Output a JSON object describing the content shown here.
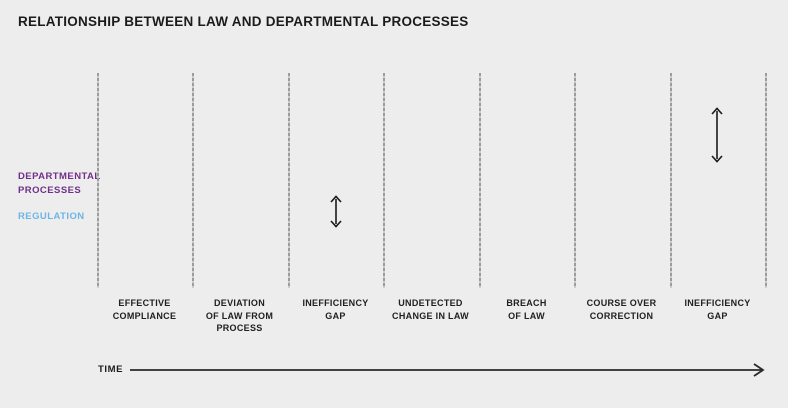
{
  "title": "RELATIONSHIP BETWEEN LAW AND DEPARTMENTAL PROCESSES",
  "legend": {
    "departmental_processes": "DEPARTMENTAL\nPROCESSES",
    "regulation": "REGULATION"
  },
  "segments": [
    {
      "label": "EFFECTIVE\nCOMPLIANCE"
    },
    {
      "label": "DEVIATION\nOF LAW FROM\nPROCESS"
    },
    {
      "label": "INEFFICIENCY\nGAP",
      "gap_arrow": "small"
    },
    {
      "label": "UNDETECTED\nCHANGE IN LAW"
    },
    {
      "label": "BREACH\nOF LAW"
    },
    {
      "label": "COURSE OVER\nCORRECTION"
    },
    {
      "label": "INEFFICIENCY\nGAP",
      "gap_arrow": "large"
    }
  ],
  "time_axis": {
    "label": "TIME"
  },
  "colors": {
    "background": "#ededed",
    "title_text": "#1b1b1b",
    "divider": "#9c9c9c",
    "departmental_processes": "#702f8a",
    "regulation": "#6cb5e3",
    "arrow": "#1a1a1a"
  }
}
